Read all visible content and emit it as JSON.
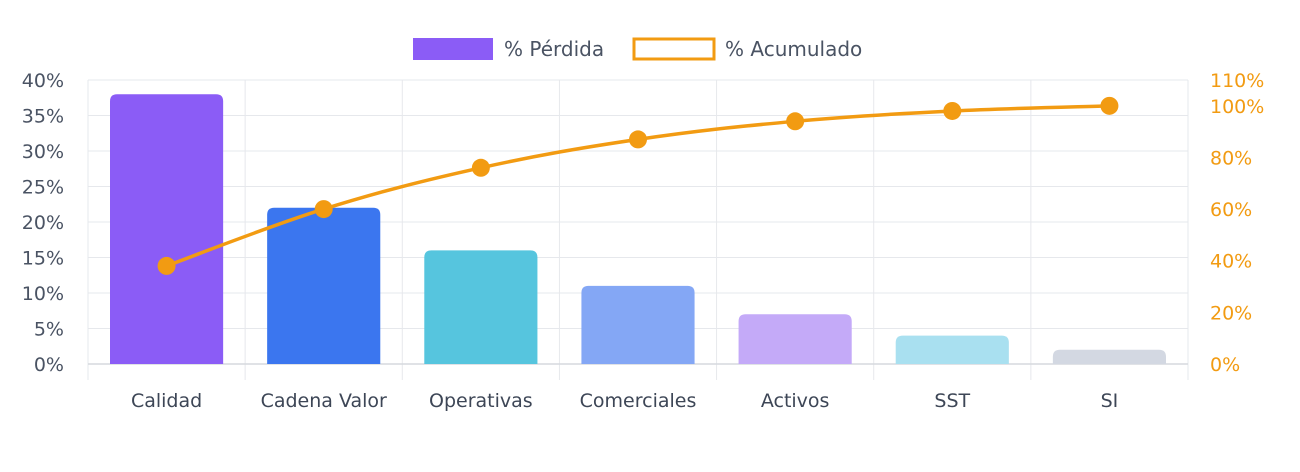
{
  "chart_data": {
    "type": "bar",
    "categories": [
      "Calidad",
      "Cadena Valor",
      "Operativas",
      "Comerciales",
      "Activos",
      "SST",
      "SI"
    ],
    "series": [
      {
        "name": "% Pérdida",
        "kind": "bar",
        "axis": "left",
        "values": [
          38,
          22,
          16,
          11,
          7,
          4,
          2
        ],
        "colors": [
          "#8b5cf6",
          "#3b76ef",
          "#56c5de",
          "#84a7f5",
          "#c4aaf8",
          "#a9e0f0",
          "#d3d8e2"
        ]
      },
      {
        "name": "% Acumulado",
        "kind": "line",
        "axis": "right",
        "values": [
          38,
          60,
          76,
          87,
          94,
          98,
          100
        ],
        "color": "#f29b12"
      }
    ],
    "y_left": {
      "ylim": [
        0,
        40
      ],
      "ticks": [
        0,
        5,
        10,
        15,
        20,
        25,
        30,
        35,
        40
      ],
      "tick_labels": [
        "0%",
        "5%",
        "10%",
        "15%",
        "20%",
        "25%",
        "30%",
        "35%",
        "40%"
      ]
    },
    "y_right": {
      "ylim": [
        0,
        110
      ],
      "ticks": [
        0,
        20,
        40,
        60,
        80,
        100,
        110
      ],
      "tick_labels": [
        "0%",
        "20%",
        "40%",
        "60%",
        "80%",
        "100%",
        "110%"
      ]
    },
    "grid": true,
    "legend_position": "top-center",
    "legend": [
      {
        "label": "% Pérdida",
        "style": "filled",
        "color": "#8b5cf6"
      },
      {
        "label": "% Acumulado",
        "style": "outline",
        "color": "#f29b12"
      }
    ]
  }
}
